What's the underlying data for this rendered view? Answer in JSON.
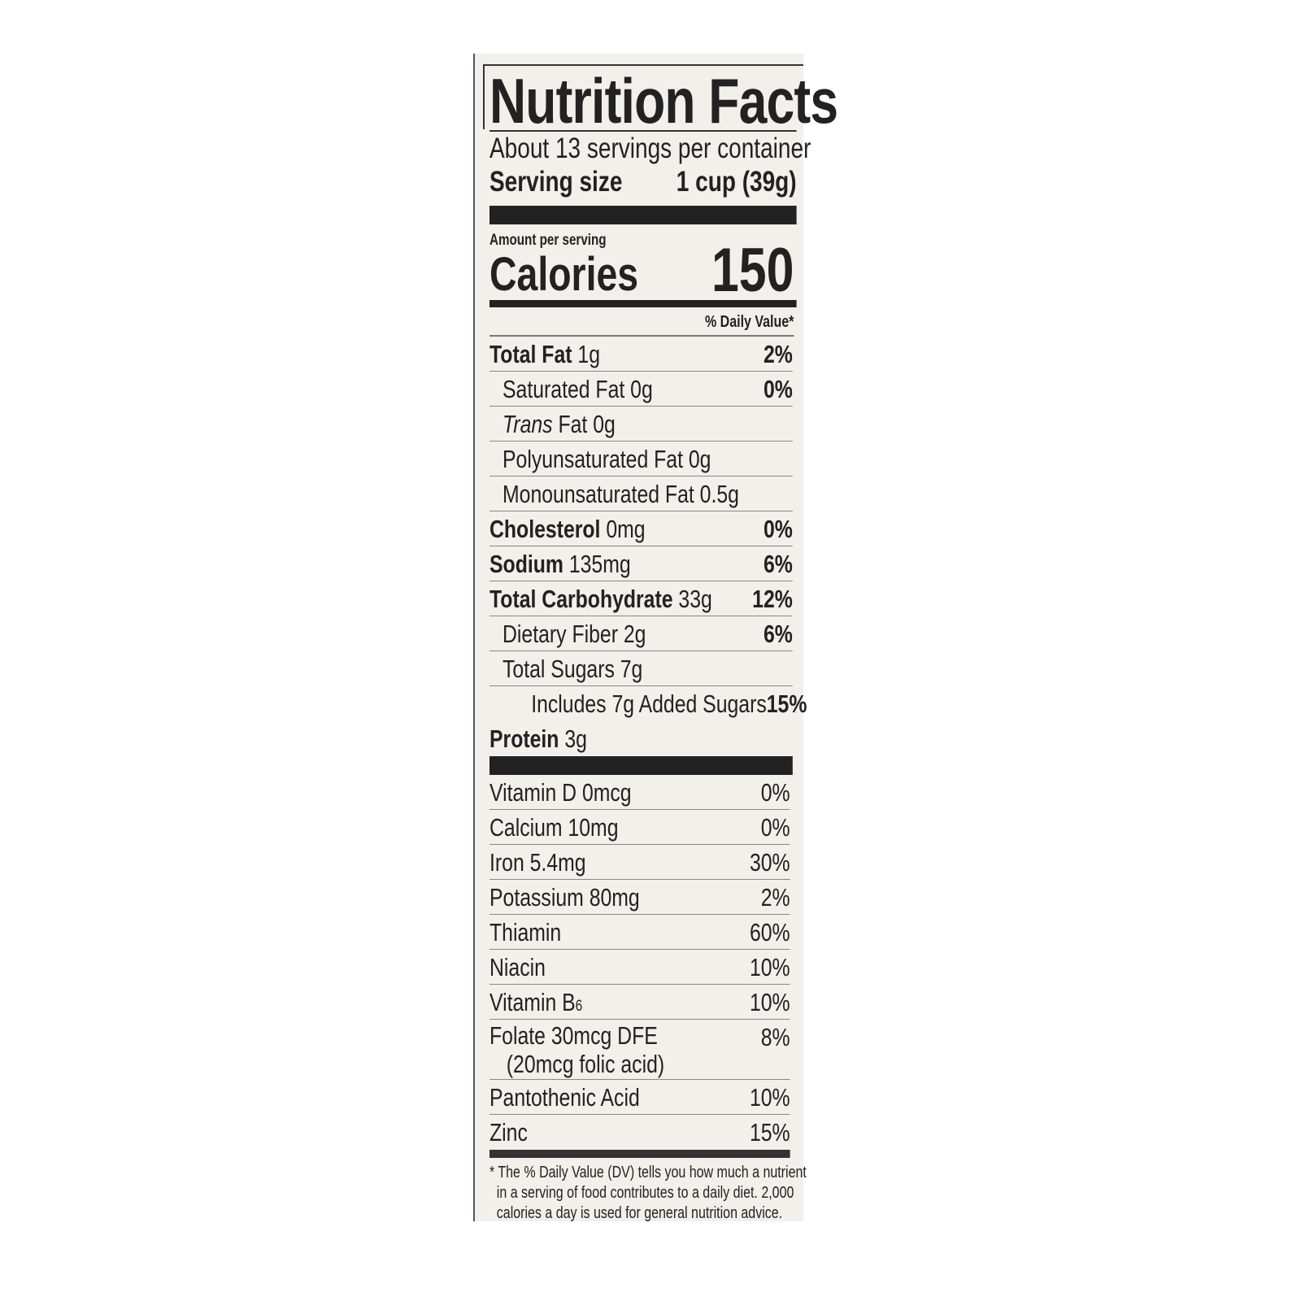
{
  "title": "Nutrition Facts",
  "servings_per_container": "About 13 servings per container",
  "serving_size": {
    "label": "Serving size",
    "value": "1 cup (39g)"
  },
  "amount_per_serving": "Amount per serving",
  "calories": {
    "label": "Calories",
    "value": "150"
  },
  "daily_value_header": "% Daily Value*",
  "nutrients": [
    {
      "name": "Total Fat",
      "amount": "1g",
      "dv": "2%",
      "bold": true,
      "indent": 0
    },
    {
      "name": "Saturated Fat",
      "amount": "0g",
      "dv": "0%",
      "bold": false,
      "indent": 1
    },
    {
      "name": "Trans",
      "name_suffix": "Fat",
      "amount": "0g",
      "dv": "",
      "bold": false,
      "indent": 1,
      "italic": true
    },
    {
      "name": "Polyunsaturated Fat",
      "amount": "0g",
      "dv": "",
      "bold": false,
      "indent": 1
    },
    {
      "name": "Monounsaturated Fat",
      "amount": "0.5g",
      "dv": "",
      "bold": false,
      "indent": 1
    },
    {
      "name": "Cholesterol",
      "amount": "0mg",
      "dv": "0%",
      "bold": true,
      "indent": 0
    },
    {
      "name": "Sodium",
      "amount": "135mg",
      "dv": "6%",
      "bold": true,
      "indent": 0
    },
    {
      "name": "Total Carbohydrate",
      "amount": "33g",
      "dv": "12%",
      "bold": true,
      "indent": 0
    },
    {
      "name": "Dietary Fiber",
      "amount": "2g",
      "dv": "6%",
      "bold": false,
      "indent": 1
    },
    {
      "name": "Total Sugars",
      "amount": "7g",
      "dv": "",
      "bold": false,
      "indent": 1
    },
    {
      "name": "Includes 7g Added Sugars",
      "amount": "",
      "dv": "15%",
      "bold": false,
      "indent": 2
    },
    {
      "name": "Protein",
      "amount": "3g",
      "dv": "",
      "bold": true,
      "indent": 0
    }
  ],
  "vitamins": [
    {
      "name": "Vitamin D",
      "amount": "0mcg",
      "dv": "0%"
    },
    {
      "name": "Calcium",
      "amount": "10mg",
      "dv": "0%"
    },
    {
      "name": "Iron",
      "amount": "5.4mg",
      "dv": "30%"
    },
    {
      "name": "Potassium",
      "amount": "80mg",
      "dv": "2%"
    },
    {
      "name": "Thiamin",
      "amount": "",
      "dv": "60%"
    },
    {
      "name": "Niacin",
      "amount": "",
      "dv": "10%"
    },
    {
      "name": "Vitamin B",
      "sub": "6",
      "amount": "",
      "dv": "10%"
    },
    {
      "name": "Folate",
      "amount": "30mcg DFE",
      "note": "(20mcg folic acid)",
      "dv": "8%"
    },
    {
      "name": "Pantothenic Acid",
      "amount": "",
      "dv": "10%"
    },
    {
      "name": "Zinc",
      "amount": "",
      "dv": "15%"
    }
  ],
  "footnote": [
    "* The % Daily Value (DV) tells you how much a nutrient",
    "in a serving of food contributes to a daily diet. 2,000",
    "calories a day is used for general nutrition advice."
  ],
  "colors": {
    "panel": "#f1f0ea",
    "ink": "#222222"
  }
}
